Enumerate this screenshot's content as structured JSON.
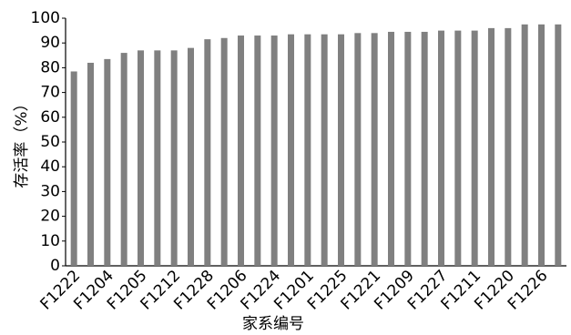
{
  "chart_data": {
    "type": "bar",
    "xlabel": "家系编号",
    "ylabel": "存活率（%）",
    "categories": [
      "F1222",
      null,
      "F1204",
      null,
      "F1205",
      null,
      "F1212",
      null,
      "F1228",
      null,
      "F1206",
      null,
      "F1224",
      null,
      "F1201",
      null,
      "F1225",
      null,
      "F1221",
      null,
      "F1209",
      null,
      "F1227",
      null,
      "F1211",
      null,
      "F1220",
      null,
      "F1226",
      null
    ],
    "values": [
      78.5,
      82,
      83.5,
      86,
      87,
      87,
      87,
      88,
      91.5,
      92,
      93,
      93,
      93,
      93.5,
      93.5,
      93.5,
      93.5,
      94,
      94,
      94.5,
      94.5,
      94.5,
      95,
      95,
      95,
      96,
      96,
      97.5,
      97.5,
      97.5
    ],
    "color": "#808080",
    "ylim": [
      0,
      100
    ],
    "yticks": [
      0,
      10,
      20,
      30,
      40,
      50,
      60,
      70,
      80,
      90,
      100
    ],
    "grid": false
  }
}
